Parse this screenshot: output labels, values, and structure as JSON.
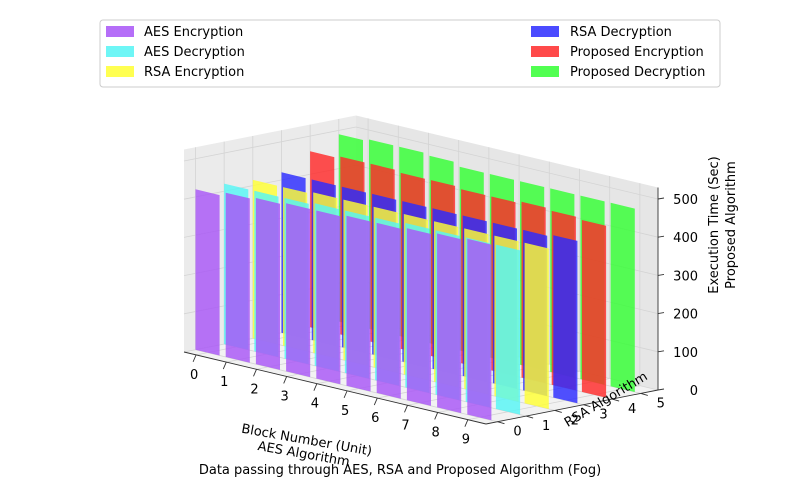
{
  "chart_data": {
    "type": "bar",
    "projection": "3d",
    "title": "",
    "caption": "Data passing through AES, RSA and Proposed Algorithm (Fog)",
    "x_axis": {
      "label_line1": "Block Number (Unit)",
      "label_line2": "AES Algorithm",
      "ticks": [
        "0",
        "1",
        "2",
        "3",
        "4",
        "5",
        "6",
        "7",
        "8",
        "9"
      ],
      "range": [
        0,
        9
      ]
    },
    "y_axis": {
      "label": "RSA Algorithm",
      "ticks": [
        "0",
        "1",
        "2",
        "3",
        "4",
        "5"
      ],
      "range": [
        0,
        5
      ]
    },
    "z_axis": {
      "label_line1": "Execution Time (Sec)",
      "label_line2": "Proposed Algorithm",
      "ticks": [
        "0",
        "100",
        "200",
        "300",
        "400",
        "500"
      ],
      "range": [
        0,
        500
      ]
    },
    "grid": true,
    "legend_position": "top",
    "categories": [
      0,
      1,
      2,
      3,
      4,
      5,
      6,
      7,
      8,
      9
    ],
    "series": [
      {
        "name": "AES Encryption",
        "row": 0,
        "color": "#a855f7",
        "values": [
          420,
          430,
          435,
          440,
          440,
          445,
          445,
          450,
          455,
          460
        ]
      },
      {
        "name": "AES Decryption",
        "row": 1,
        "color": "#55f5f5",
        "values": [
          420,
          420,
          420,
          425,
          425,
          425,
          430,
          430,
          430,
          430
        ]
      },
      {
        "name": "RSA Encryption",
        "row": 2,
        "color": "#ffff33",
        "values": [
          415,
          415,
          420,
          420,
          420,
          420,
          420,
          420,
          420,
          420
        ]
      },
      {
        "name": "RSA Decryption",
        "row": 3,
        "color": "#2b2bff",
        "values": [
          420,
          420,
          420,
          420,
          420,
          420,
          420,
          420,
          420,
          425
        ]
      },
      {
        "name": "Proposed Encryption",
        "row": 4,
        "color": "#ff2a2a",
        "values": [
          460,
          465,
          465,
          460,
          460,
          455,
          455,
          460,
          455,
          450
        ]
      },
      {
        "name": "Proposed Decryption",
        "row": 5,
        "color": "#33ff33",
        "values": [
          490,
          495,
          495,
          490,
          480,
          480,
          480,
          480,
          480,
          480
        ]
      }
    ],
    "legend": {
      "left": [
        "AES Encryption",
        "AES Decryption",
        "RSA Encryption"
      ],
      "right": [
        "RSA Decryption",
        "Proposed Encryption",
        "Proposed Decryption"
      ]
    }
  }
}
